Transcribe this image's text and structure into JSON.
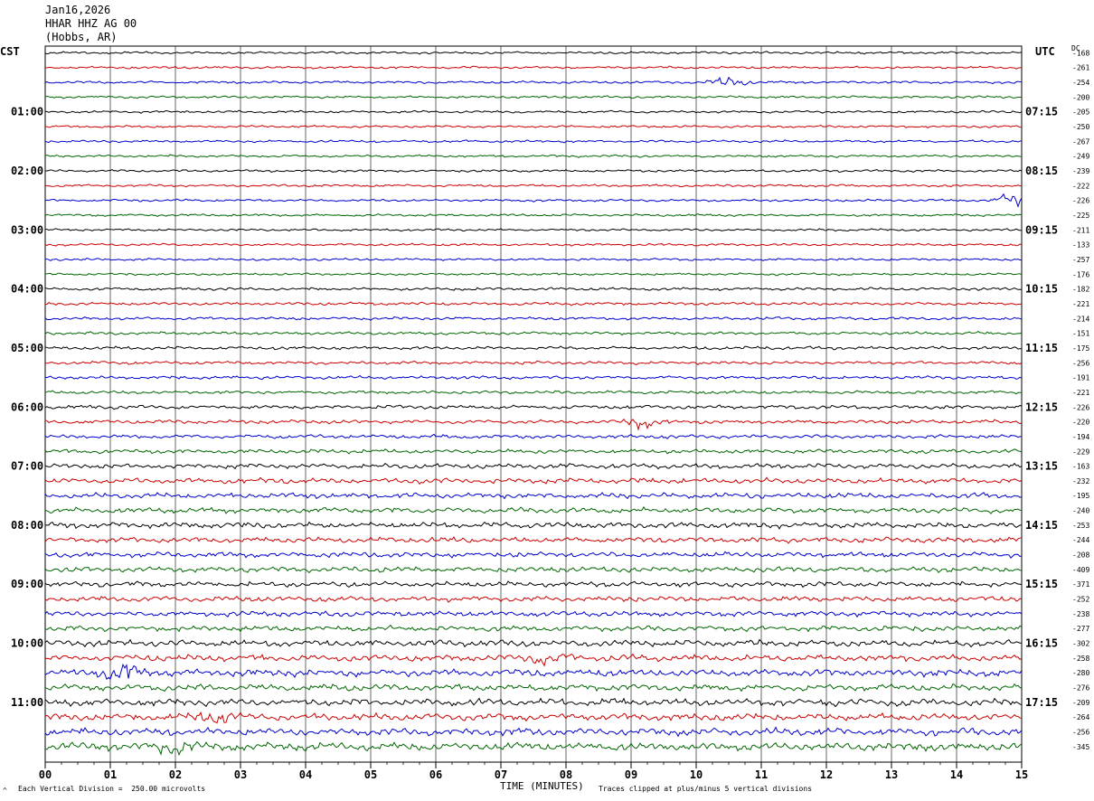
{
  "header": {
    "date": "Jan16,2026",
    "station": "HHAR HHZ AG 00",
    "location": "(Hobbs, AR)"
  },
  "left_tz": "CST",
  "right_tz": "UTC",
  "dc_label": "DC",
  "footer": {
    "mark": "^",
    "division": "Each Vertical Division =  250.00 microvolts",
    "clip": "Traces clipped at plus/minus 5 vertical divisions"
  },
  "colors": {
    "trace_cycle": [
      "#000000",
      "#cc0000",
      "#0000cc",
      "#006600"
    ],
    "grid": "#000000"
  },
  "chart_data": {
    "type": "line",
    "title": "",
    "xlabel": "TIME (MINUTES)",
    "ylabel": "",
    "xlim": [
      0,
      15
    ],
    "x_ticks": [
      "00",
      "01",
      "02",
      "03",
      "04",
      "05",
      "06",
      "07",
      "08",
      "09",
      "10",
      "11",
      "12",
      "13",
      "14",
      "15"
    ],
    "trace_minutes": 15,
    "traces_count": 48,
    "left_hour_labels": [
      "01:00",
      "02:00",
      "03:00",
      "04:00",
      "05:00",
      "06:00",
      "07:00",
      "08:00",
      "09:00",
      "10:00",
      "11:00"
    ],
    "right_hour_labels": [
      "07:15",
      "08:15",
      "09:15",
      "10:15",
      "11:15",
      "12:15",
      "13:15",
      "14:15",
      "15:15",
      "16:15",
      "17:15"
    ],
    "dc_offsets": [
      -168,
      -261,
      -254,
      -200,
      -205,
      -250,
      -267,
      -249,
      -239,
      -222,
      -226,
      -225,
      -211,
      -133,
      -257,
      -176,
      -182,
      -221,
      -214,
      -151,
      -175,
      -256,
      -191,
      -221,
      -226,
      -220,
      -194,
      -229,
      -163,
      -232,
      -195,
      -240,
      -253,
      -244,
      -208,
      -409,
      -371,
      -252,
      -238,
      -277,
      -302,
      -258,
      -280,
      -276,
      -209,
      -264,
      -256,
      -345
    ],
    "amplitude_levels": [
      0.9,
      0.9,
      0.9,
      0.9,
      0.9,
      0.9,
      0.9,
      0.9,
      0.9,
      0.9,
      0.9,
      0.9,
      0.9,
      0.9,
      0.9,
      0.9,
      1.1,
      1.1,
      1.1,
      1.1,
      1.2,
      1.2,
      1.2,
      1.2,
      1.4,
      1.4,
      1.4,
      1.5,
      1.8,
      2.0,
      2.0,
      2.0,
      2.2,
      2.0,
      2.0,
      2.0,
      2.0,
      2.0,
      2.0,
      2.0,
      2.4,
      2.4,
      2.6,
      2.4,
      2.6,
      2.6,
      2.8,
      3.0
    ],
    "events": [
      {
        "trace": 2,
        "minute": 10.5,
        "amp": 4
      },
      {
        "trace": 10,
        "minute": 14.9,
        "amp": 5
      },
      {
        "trace": 25,
        "minute": 9.2,
        "amp": 4
      },
      {
        "trace": 41,
        "minute": 7.7,
        "amp": 6
      },
      {
        "trace": 42,
        "minute": 1.2,
        "amp": 6
      },
      {
        "trace": 45,
        "minute": 2.6,
        "amp": 4
      },
      {
        "trace": 47,
        "minute": 2.0,
        "amp": 5
      }
    ]
  }
}
